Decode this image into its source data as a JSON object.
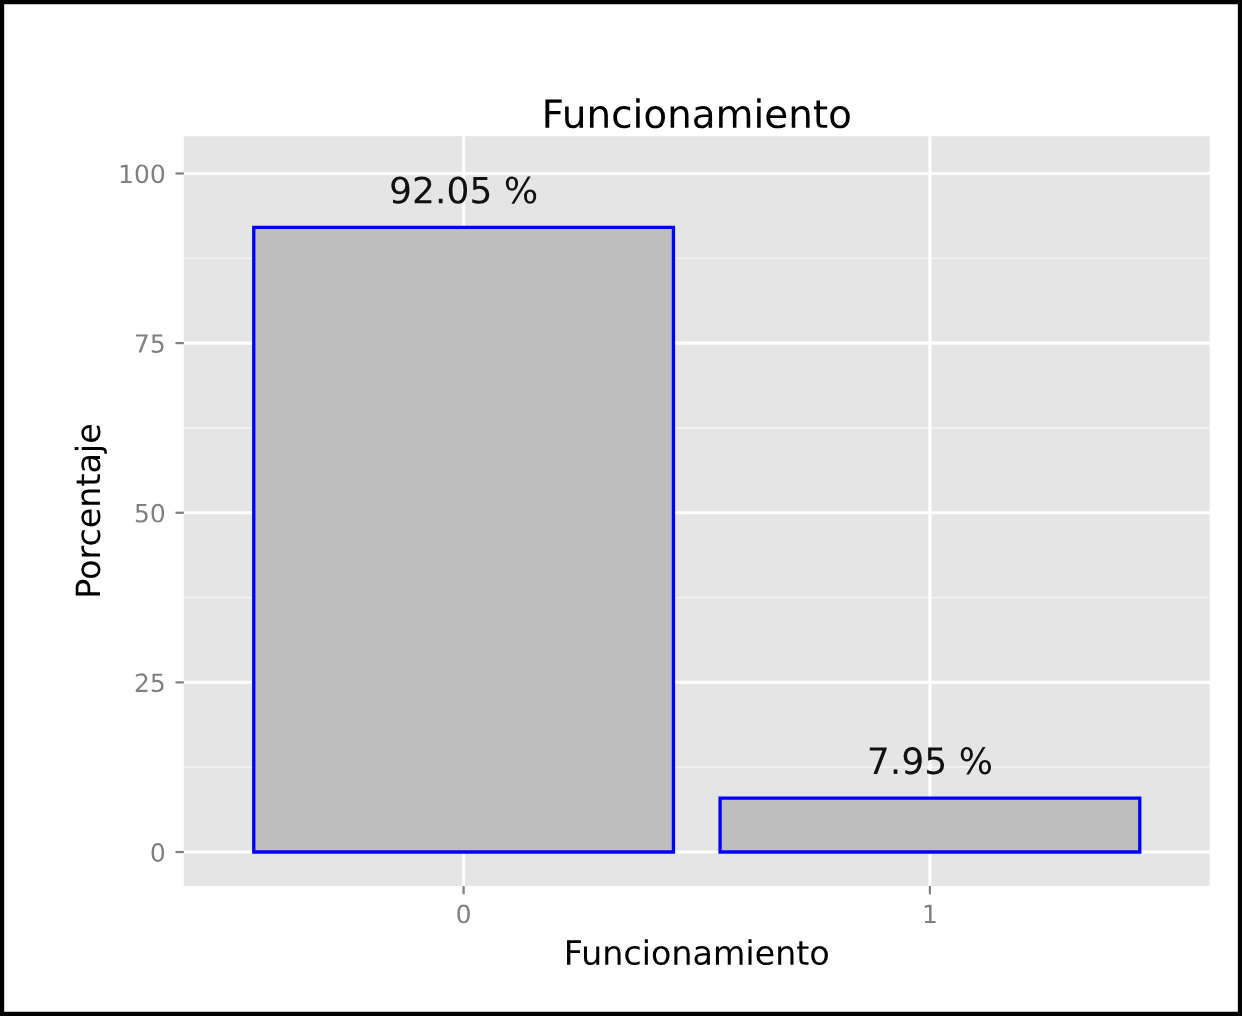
{
  "chart_data": {
    "type": "bar",
    "title": "Funcionamiento",
    "xlabel": "Funcionamiento",
    "ylabel": "Porcentaje",
    "categories": [
      "0",
      "1"
    ],
    "values": [
      92.05,
      7.95
    ],
    "value_labels": [
      "92.05 %",
      "7.95 %"
    ],
    "color": "#bebebe",
    "ylim": [
      -5,
      105.5
    ],
    "yticks": [
      0,
      25,
      50,
      75,
      100
    ],
    "grid": true
  }
}
